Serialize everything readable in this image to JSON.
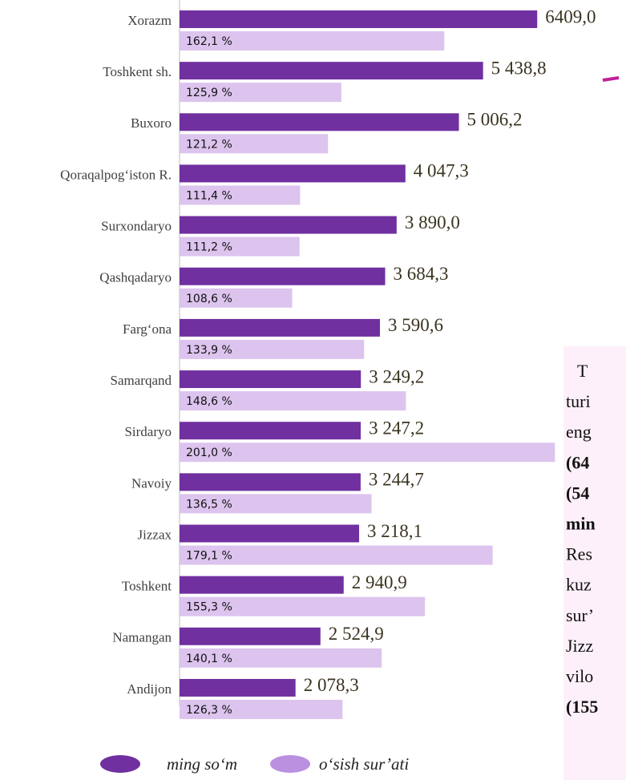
{
  "chart_data": {
    "type": "bar",
    "orientation": "horizontal",
    "categories": [
      "Xorazm",
      "Toshkent sh.",
      "Buxoro",
      "Qoraqalpog‘iston R.",
      "Surxondaryo",
      "Qashqadaryo",
      "Farg‘ona",
      "Samarqand",
      "Sirdaryo",
      "Navoiy",
      "Jizzax",
      "Toshkent",
      "Namangan",
      "Andijon"
    ],
    "series": [
      {
        "name": "ming so‘m",
        "color": "#7030a0",
        "values": [
          6409.0,
          5438.8,
          5006.2,
          4047.3,
          3890.0,
          3684.3,
          3590.6,
          3249.2,
          3247.2,
          3244.7,
          3218.1,
          2940.9,
          2524.9,
          2078.3
        ],
        "value_labels": [
          "6409,0",
          "5 438,8",
          "5 006,2",
          "4 047,3",
          "3 890,0",
          "3 684,3",
          "3 590,6",
          "3 249,2",
          "3 247,2",
          "3 244,7",
          "3 218,1",
          "2 940,9",
          "2 524,9",
          "2 078,3"
        ]
      },
      {
        "name": "o‘sish sur’ati",
        "color": "#dcc4ee",
        "axis": "x2",
        "values": [
          162.1,
          125.9,
          121.2,
          111.4,
          111.2,
          108.6,
          133.9,
          148.6,
          201.0,
          136.5,
          179.1,
          155.3,
          140.1,
          126.3
        ],
        "value_labels": [
          "162,1 %",
          "125,9 %",
          "121,2 %",
          "111,4 %",
          "111,2 %",
          "108,6 %",
          "133,9 %",
          "148,6 %",
          "201,0 %",
          "136,5 %",
          "179,1 %",
          "155,3 %",
          "140,1 %",
          "126,3 %"
        ]
      }
    ],
    "xlim": [
      0,
      8000
    ],
    "x2lim": [
      69,
      226
    ],
    "legend": "bottom"
  },
  "side_text": {
    "lines": [
      {
        "text": "T",
        "bold": false
      },
      {
        "text": "turi",
        "bold": false
      },
      {
        "text": "eng",
        "bold": false
      },
      {
        "text": "(64",
        "bold": true
      },
      {
        "text": "(54",
        "bold": true
      },
      {
        "text": "min",
        "bold": true
      },
      {
        "text": "Res",
        "bold": false
      },
      {
        "text": "kuz",
        "bold": false
      },
      {
        "text": "sur’",
        "bold": false
      },
      {
        "text": "Jizz",
        "bold": false
      },
      {
        "text": "vilo",
        "bold": false
      },
      {
        "text": "(155",
        "bold": true
      }
    ]
  }
}
